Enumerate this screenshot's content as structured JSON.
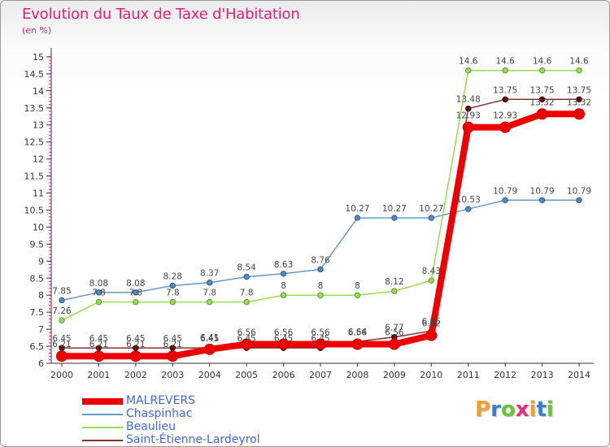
{
  "title": "Evolution du Taux de Taxe d'Habitation",
  "subtitle": "(en %)",
  "logo": {
    "letters": [
      "P",
      "r",
      "o",
      "x",
      "i",
      "t",
      "i"
    ],
    "colors": [
      "#f0a030",
      "#3a7fd0",
      "#6cc040",
      "#e03080",
      "#f0a030",
      "#3a7fd0",
      "#6cc040"
    ]
  },
  "chart_data": {
    "type": "line",
    "x": [
      "2000",
      "2001",
      "2002",
      "2003",
      "2004",
      "2005",
      "2006",
      "2007",
      "2008",
      "2009",
      "2010",
      "2011",
      "2012",
      "2013",
      "2014"
    ],
    "yticks": [
      "6",
      "6.5",
      "7",
      "7.5",
      "8",
      "8.5",
      "9",
      "9.5",
      "10",
      "10.5",
      "11",
      "11.5",
      "12",
      "12.5",
      "13",
      "13.5",
      "14",
      "14.5",
      "15"
    ],
    "ylim": [
      6,
      15
    ],
    "grid": false,
    "legend_position": "bottom-left",
    "series": [
      {
        "name": "MALREVERS",
        "color": "#ee0000",
        "values": [
          6.21,
          6.21,
          6.21,
          6.21,
          6.41,
          6.56,
          6.56,
          6.56,
          6.56,
          6.56,
          6.82,
          12.93,
          12.93,
          13.32,
          13.32
        ],
        "labels": [
          "6.21",
          "6.21",
          "6.21",
          "6.21",
          "6.41",
          "6.56",
          "6.56",
          "6.56",
          "6.56",
          "6.56",
          "6.82",
          "12.93",
          "12.93",
          "13.32",
          "13.32"
        ]
      },
      {
        "name": "Chaspinhac",
        "color": "#6699cc",
        "values": [
          7.85,
          8.08,
          8.08,
          8.28,
          8.37,
          8.54,
          8.63,
          8.76,
          10.27,
          10.27,
          10.27,
          10.53,
          10.79,
          10.79,
          10.79
        ],
        "labels": [
          "7.85",
          "8.08",
          "8.08",
          "8.28",
          "8.37",
          "8.54",
          "8.63",
          "8.76",
          "10.27",
          "10.27",
          "10.27",
          "10.53",
          "10.79",
          "10.79",
          "10.79"
        ]
      },
      {
        "name": "Beaulieu",
        "color": "#99dd55",
        "values": [
          7.26,
          7.8,
          7.8,
          7.8,
          7.8,
          7.8,
          8,
          8,
          8,
          8.12,
          8.43,
          14.6,
          14.6,
          14.6,
          14.6
        ],
        "labels": [
          "7.26",
          "7.8",
          "7.8",
          "7.8",
          "7.8",
          "7.8",
          "8",
          "8",
          "8",
          "8.12",
          "8.43",
          "14.6",
          "14.6",
          "14.6",
          "14.6"
        ]
      },
      {
        "name": "Saint-Étienne-Lardeyrol",
        "color": "#883333",
        "values": [
          6.45,
          6.45,
          6.45,
          6.45,
          6.45,
          6.45,
          6.45,
          6.45,
          6.64,
          6.77,
          6.95,
          13.48,
          13.75,
          13.75,
          13.75
        ],
        "labels": [
          "6.45",
          "6.45",
          "6.45",
          "6.45",
          "6.45",
          "6.45",
          "6.45",
          "6.45",
          "6.64",
          "6.77",
          "6.95",
          "13.48",
          "13.75",
          "13.75",
          "13.75"
        ]
      }
    ]
  }
}
